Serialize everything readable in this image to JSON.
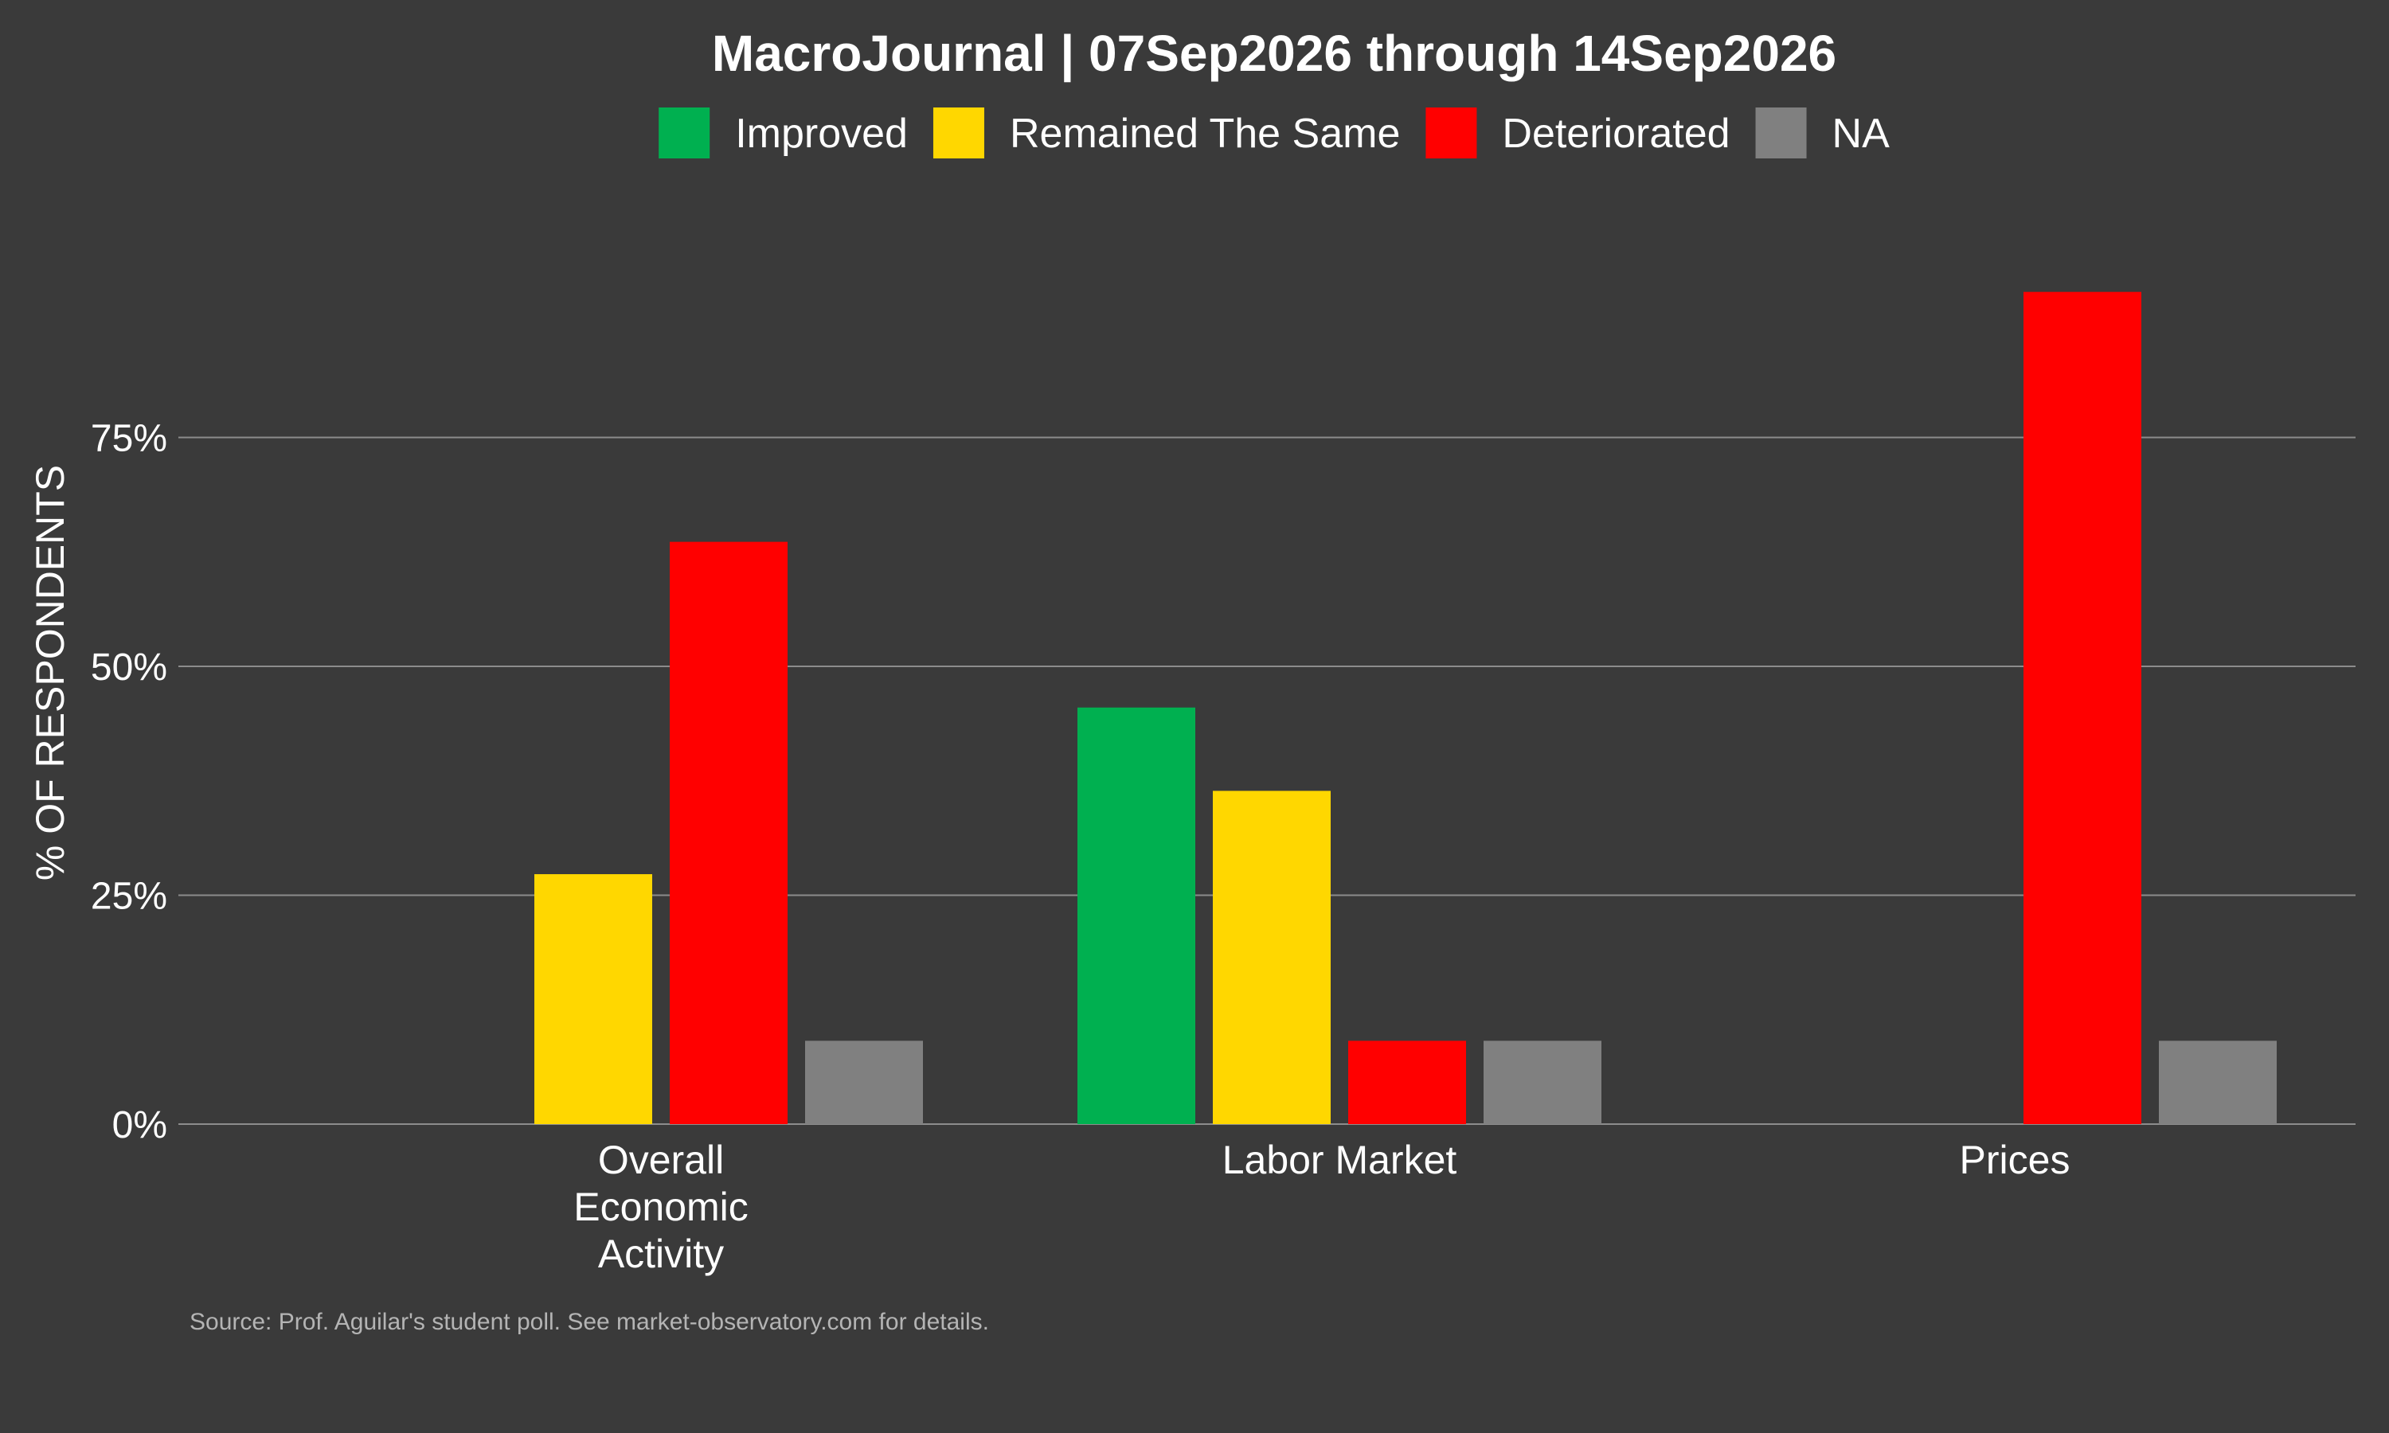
{
  "chart_data": {
    "type": "bar",
    "title": "MacroJournal | 07Sep2026 through 14Sep2026",
    "xlabel": "",
    "ylabel": "% OF RESPONDENTS",
    "categories": [
      [
        "Overall",
        "Economic",
        "Activity"
      ],
      [
        "Labor Market"
      ],
      [
        "Prices"
      ]
    ],
    "series": [
      {
        "name": "Improved",
        "color": "#00b050",
        "values": [
          0.0,
          45.5,
          0.0
        ]
      },
      {
        "name": "Remained The Same",
        "color": "#ffd700",
        "values": [
          27.3,
          36.4,
          0.0
        ]
      },
      {
        "name": "Deteriorated",
        "color": "#ff0000",
        "values": [
          63.6,
          9.1,
          90.9
        ]
      },
      {
        "name": "NA",
        "color": "#808080",
        "values": [
          9.1,
          9.1,
          9.1
        ]
      }
    ],
    "ylim": [
      0,
      98
    ],
    "yticks": [
      0,
      25,
      50,
      75
    ],
    "ytick_labels": [
      "0%",
      "25%",
      "50%",
      "75%"
    ],
    "grid": true,
    "legend_position": "top"
  },
  "footer": {
    "source": "Source: Prof. Aguilar's student poll.  See market-observatory.com for details."
  },
  "colors": {
    "background": "#3a3a3a",
    "text": "#ffffff",
    "grid": "#8c8c8c",
    "source_text": "#b4b4b4"
  }
}
